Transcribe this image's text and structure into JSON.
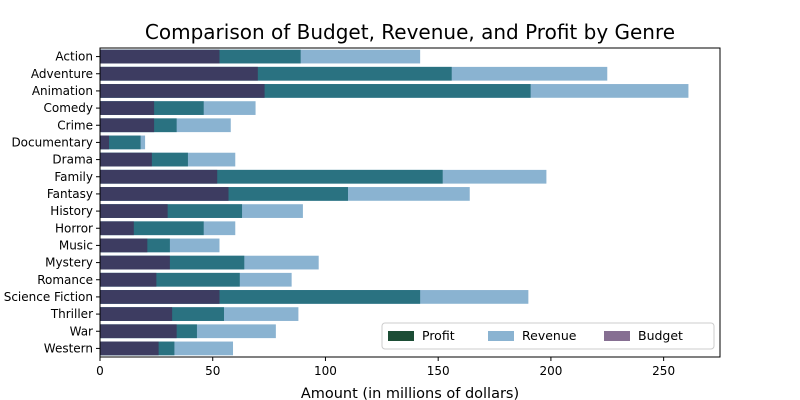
{
  "chart_data": {
    "type": "bar",
    "orientation": "horizontal",
    "title": "Comparison of Budget, Revenue, and Profit by Genre",
    "xlabel": "Amount (in millions of dollars)",
    "ylabel": "",
    "xlim": [
      0,
      275
    ],
    "xticks": [
      0,
      50,
      100,
      150,
      200,
      250
    ],
    "grid": false,
    "legend_position": "lower-right",
    "categories": [
      "Action",
      "Adventure",
      "Animation",
      "Comedy",
      "Crime",
      "Documentary",
      "Drama",
      "Family",
      "Fantasy",
      "History",
      "Horror",
      "Music",
      "Mystery",
      "Romance",
      "Science Fiction",
      "Thriller",
      "War",
      "Western"
    ],
    "series": [
      {
        "name": "Revenue",
        "color": "#8ab3d1",
        "values": [
          142,
          225,
          261,
          69,
          58,
          20,
          60,
          198,
          164,
          90,
          60,
          53,
          97,
          85,
          190,
          88,
          78,
          59
        ]
      },
      {
        "name": "Profit",
        "color": "#2a7281",
        "values": [
          89,
          156,
          191,
          46,
          34,
          18,
          39,
          152,
          110,
          63,
          46,
          31,
          64,
          62,
          142,
          55,
          43,
          33
        ]
      },
      {
        "name": "Budget",
        "color": "#3d3c61",
        "values": [
          53,
          70,
          73,
          24,
          24,
          4,
          23,
          52,
          57,
          30,
          15,
          21,
          31,
          25,
          53,
          32,
          34,
          26
        ]
      }
    ],
    "legend": [
      {
        "label": "Profit",
        "color": "#1c4d35"
      },
      {
        "label": "Revenue",
        "color": "#8ab3d1"
      },
      {
        "label": "Budget",
        "color": "#866f92"
      }
    ],
    "overlap_color": "#866f92"
  }
}
